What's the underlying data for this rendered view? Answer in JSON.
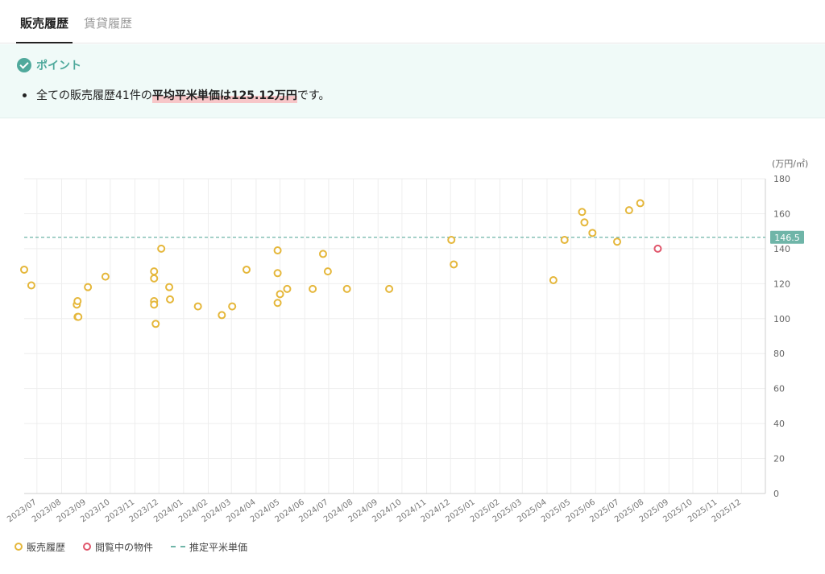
{
  "tabs": {
    "sales": "販売履歴",
    "rental": "賃貸履歴"
  },
  "point": {
    "title": "ポイント",
    "prefix": "全ての販売履歴41件の",
    "highlight": "平均平米単価は125.12万円",
    "suffix": "です。"
  },
  "legend": {
    "sales": "販売履歴",
    "viewing": "閲覧中の物件",
    "estimate": "推定平米単価"
  },
  "colors": {
    "sales": "#e5b73b",
    "viewing": "#e0566b",
    "estimate": "#6fb5a8",
    "grid": "#eeeeee"
  },
  "chart_data": {
    "type": "scatter",
    "unit_label": "(万円/㎡)",
    "ylim": [
      0,
      180
    ],
    "y_ticks": [
      0,
      20,
      40,
      60,
      80,
      100,
      120,
      140,
      160,
      180
    ],
    "x_range": [
      "2023-06-15",
      "2025-12-31"
    ],
    "x_tick_labels": [
      "2023/07",
      "2023/08",
      "2023/09",
      "2023/10",
      "2023/11",
      "2023/12",
      "2024/01",
      "2024/02",
      "2024/03",
      "2024/04",
      "2024/05",
      "2024/06",
      "2024/07",
      "2024/08",
      "2024/09",
      "2024/10",
      "2024/11",
      "2024/12",
      "2025/01",
      "2025/02",
      "2025/03",
      "2025/04",
      "2025/05",
      "2025/06",
      "2025/07",
      "2025/08",
      "2025/09",
      "2025/10",
      "2025/11",
      "2025/12"
    ],
    "estimate_line": {
      "value": 146.5,
      "label": "146.5"
    },
    "grid": true,
    "legend_position": "bottom-left",
    "series": [
      {
        "name": "販売履歴",
        "points": [
          [
            "2023-06-15",
            128
          ],
          [
            "2023-06-24",
            119
          ],
          [
            "2023-08-20",
            108
          ],
          [
            "2023-08-21",
            110
          ],
          [
            "2023-08-21",
            101
          ],
          [
            "2023-08-22",
            101
          ],
          [
            "2023-09-03",
            118
          ],
          [
            "2023-09-25",
            124
          ],
          [
            "2023-11-25",
            127
          ],
          [
            "2023-11-25",
            123
          ],
          [
            "2023-11-25",
            110
          ],
          [
            "2023-11-25",
            108
          ],
          [
            "2023-11-27",
            97
          ],
          [
            "2023-12-04",
            140
          ],
          [
            "2023-12-14",
            118
          ],
          [
            "2023-12-15",
            111
          ],
          [
            "2024-01-19",
            107
          ],
          [
            "2024-02-18",
            102
          ],
          [
            "2024-03-02",
            107
          ],
          [
            "2024-03-20",
            128
          ],
          [
            "2024-04-28",
            139
          ],
          [
            "2024-04-28",
            126
          ],
          [
            "2024-04-28",
            109
          ],
          [
            "2024-05-01",
            114
          ],
          [
            "2024-05-10",
            117
          ],
          [
            "2024-06-11",
            117
          ],
          [
            "2024-06-24",
            137
          ],
          [
            "2024-06-30",
            127
          ],
          [
            "2024-07-24",
            117
          ],
          [
            "2024-09-15",
            117
          ],
          [
            "2024-12-02",
            145
          ],
          [
            "2024-12-05",
            131
          ],
          [
            "2025-04-09",
            122
          ],
          [
            "2025-04-23",
            145
          ],
          [
            "2025-05-15",
            161
          ],
          [
            "2025-05-18",
            155
          ],
          [
            "2025-05-28",
            149
          ],
          [
            "2025-06-28",
            144
          ],
          [
            "2025-07-13",
            162
          ],
          [
            "2025-07-27",
            166
          ]
        ]
      },
      {
        "name": "閲覧中の物件",
        "points": [
          [
            "2025-08-18",
            140
          ]
        ]
      }
    ]
  }
}
